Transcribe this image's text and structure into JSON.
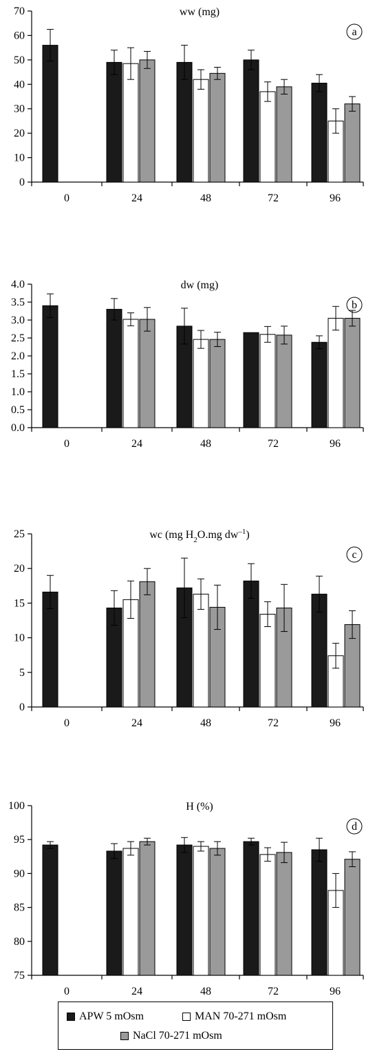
{
  "legend": [
    {
      "label": "APW 5 mOsm",
      "color": "#1a1a1a"
    },
    {
      "label": "MAN 70-271 mOsm",
      "color": "#ffffff"
    },
    {
      "label": "NaCl 70-271 mOsm",
      "color": "#9a9a9a"
    }
  ],
  "chart_data": [
    {
      "type": "bar",
      "panel": "a",
      "title": "ww (mg)",
      "categories": [
        "0",
        "24",
        "48",
        "72",
        "96"
      ],
      "ylim": [
        0,
        70
      ],
      "yticks": [
        "0",
        "10",
        "20",
        "30",
        "40",
        "50",
        "60",
        "70"
      ],
      "series": [
        {
          "name": "APW 5 mOsm",
          "values": [
            56,
            49,
            49,
            50,
            40.5
          ],
          "errors": [
            6.5,
            5,
            7,
            4,
            3.5
          ]
        },
        {
          "name": "MAN 70-271 mOsm",
          "values": [
            null,
            48.5,
            42,
            37,
            25
          ],
          "errors": [
            null,
            6.5,
            4,
            4,
            5
          ]
        },
        {
          "name": "NaCl 70-271 mOsm",
          "values": [
            null,
            50,
            44.5,
            39,
            32
          ],
          "errors": [
            null,
            3.5,
            2.5,
            3,
            3
          ]
        }
      ]
    },
    {
      "type": "bar",
      "panel": "b",
      "title": "dw (mg)",
      "categories": [
        "0",
        "24",
        "48",
        "72",
        "96"
      ],
      "ylim": [
        0,
        4
      ],
      "yticks": [
        "0.0",
        "0.5",
        "1.0",
        "1.5",
        "2.0",
        "2.5",
        "3.0",
        "3.5",
        "4.0"
      ],
      "series": [
        {
          "name": "APW 5 mOsm",
          "values": [
            3.4,
            3.3,
            2.83,
            2.65,
            2.38
          ],
          "errors": [
            0.33,
            0.3,
            0.5,
            0.0,
            0.18
          ]
        },
        {
          "name": "MAN 70-271 mOsm",
          "values": [
            null,
            3.02,
            2.46,
            2.6,
            3.05
          ],
          "errors": [
            null,
            0.18,
            0.25,
            0.22,
            0.33
          ]
        },
        {
          "name": "NaCl 70-271 mOsm",
          "values": [
            null,
            3.02,
            2.46,
            2.58,
            3.05
          ],
          "errors": [
            null,
            0.33,
            0.2,
            0.25,
            0.22
          ]
        }
      ]
    },
    {
      "type": "bar",
      "panel": "c",
      "title": "wc (mg H",
      "title_sub": "2",
      "title_rest": "O.mg dw",
      "title_sup": "–1",
      "title_end": ")",
      "categories": [
        "0",
        "24",
        "48",
        "72",
        "96"
      ],
      "ylim": [
        0,
        25
      ],
      "yticks": [
        "0",
        "5",
        "10",
        "15",
        "20",
        "25"
      ],
      "series": [
        {
          "name": "APW 5 mOsm",
          "values": [
            16.6,
            14.3,
            17.2,
            18.2,
            16.3
          ],
          "errors": [
            2.4,
            2.5,
            4.3,
            2.5,
            2.6
          ]
        },
        {
          "name": "MAN 70-271 mOsm",
          "values": [
            null,
            15.5,
            16.3,
            13.4,
            7.4
          ],
          "errors": [
            null,
            2.7,
            2.2,
            1.8,
            1.8
          ]
        },
        {
          "name": "NaCl 70-271 mOsm",
          "values": [
            null,
            18.1,
            14.4,
            14.3,
            11.9
          ],
          "errors": [
            null,
            1.9,
            3.2,
            3.4,
            2
          ]
        }
      ]
    },
    {
      "type": "bar",
      "panel": "d",
      "title": "H (%)",
      "categories": [
        "0",
        "24",
        "48",
        "72",
        "96"
      ],
      "ylim": [
        75,
        100
      ],
      "yticks": [
        "75",
        "80",
        "85",
        "90",
        "95",
        "100"
      ],
      "series": [
        {
          "name": "APW 5 mOsm",
          "values": [
            94.2,
            93.3,
            94.2,
            94.7,
            93.5
          ],
          "errors": [
            0.5,
            1.1,
            1.1,
            0.5,
            1.7
          ]
        },
        {
          "name": "MAN 70-271 mOsm",
          "values": [
            null,
            93.7,
            94.0,
            92.8,
            87.5
          ],
          "errors": [
            null,
            1.0,
            0.7,
            1.0,
            2.5
          ]
        },
        {
          "name": "NaCl 70-271 mOsm",
          "values": [
            null,
            94.7,
            93.7,
            93.1,
            92.1
          ],
          "errors": [
            null,
            0.5,
            1.0,
            1.5,
            1.1
          ]
        }
      ]
    }
  ]
}
